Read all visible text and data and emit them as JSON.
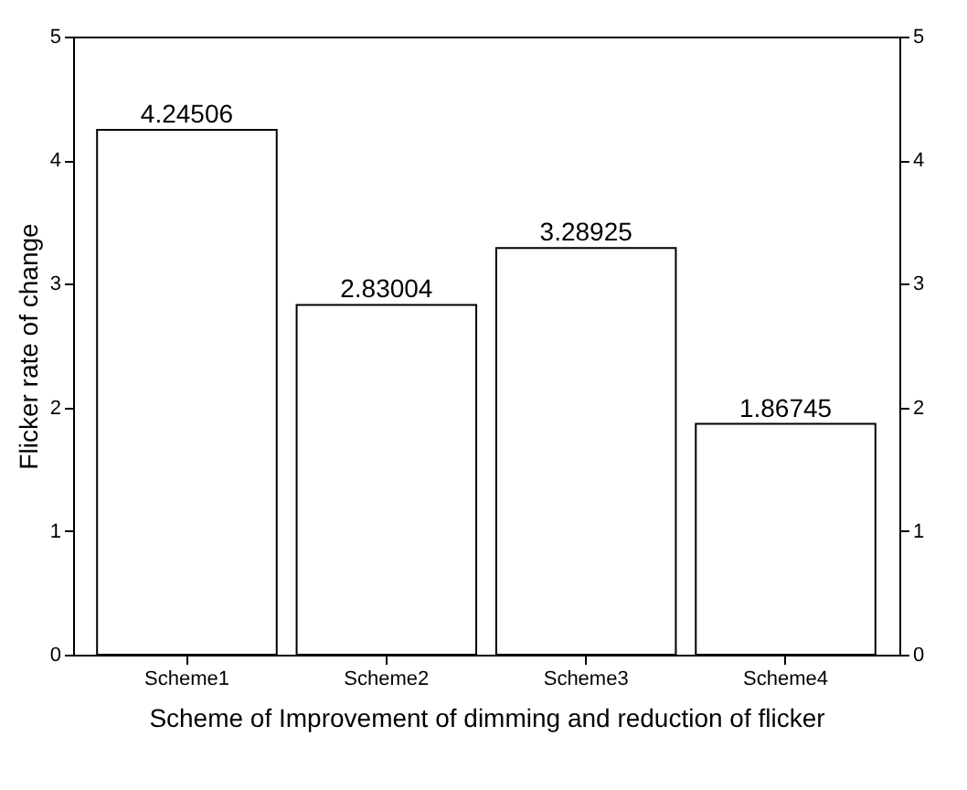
{
  "chart_data": {
    "type": "bar",
    "xlabel": "Scheme of Improvement of dimming and reduction of flicker",
    "ylabel": "Flicker rate of change",
    "categories": [
      "Scheme1",
      "Scheme2",
      "Scheme3",
      "Scheme4"
    ],
    "series": [
      {
        "color": "#ffffff",
        "values": [
          4.24506,
          2.83004,
          3.28925,
          1.86745
        ]
      }
    ],
    "ylim": [
      0,
      5
    ],
    "yticks": [
      0,
      1,
      2,
      3,
      4,
      5
    ],
    "y2lim": [
      0,
      5
    ],
    "y2ticks": [
      0,
      1,
      2,
      3,
      4,
      5
    ],
    "data_labels": true,
    "grid": false
  }
}
